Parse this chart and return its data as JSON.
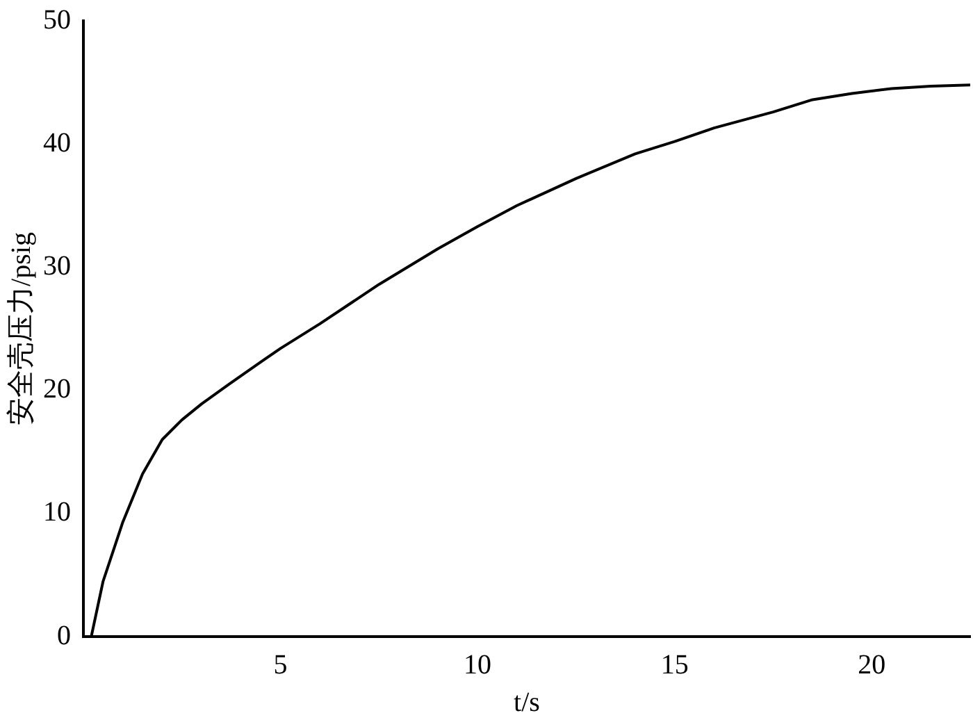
{
  "chart_data": {
    "type": "line",
    "xlabel": "t/s",
    "ylabel": "安全壳压力/psig",
    "series": [
      {
        "color": "#000000",
        "x": [
          0.2,
          0.5,
          1.0,
          1.5,
          2.0,
          2.5,
          3.0,
          3.7,
          4.5,
          5.0,
          6.0,
          7.5,
          9.0,
          10.0,
          11.0,
          12.5,
          14.0,
          15.0,
          16.0,
          17.5,
          18.5,
          19.5,
          20.5,
          21.5,
          22.5
        ],
        "values": [
          0,
          4.5,
          9.3,
          13.2,
          16.0,
          17.6,
          18.9,
          20.5,
          22.3,
          23.4,
          25.4,
          28.6,
          31.5,
          33.3,
          35.0,
          37.2,
          39.2,
          40.2,
          41.3,
          42.6,
          43.6,
          44.1,
          44.5,
          44.7,
          44.8
        ]
      }
    ],
    "xlim": [
      0,
      22.5
    ],
    "xticks": [
      5,
      10,
      15,
      20
    ],
    "ylim": [
      0,
      50
    ],
    "yticks": [
      0,
      10,
      20,
      30,
      40,
      50
    ],
    "grid": false,
    "legend": false,
    "marker": "none",
    "line_style": "solid"
  }
}
